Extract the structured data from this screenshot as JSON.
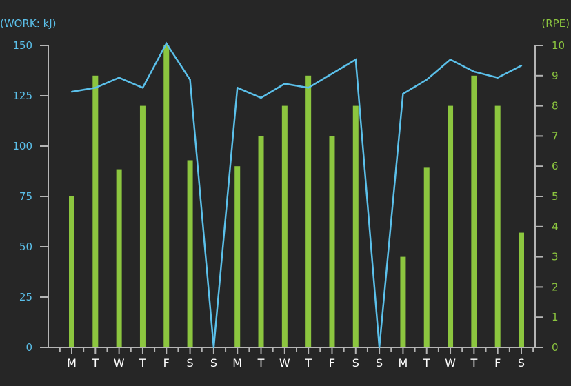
{
  "chart_data": {
    "type": "bar+line",
    "categories": [
      "M",
      "T",
      "W",
      "T",
      "F",
      "S",
      "S",
      "M",
      "T",
      "W",
      "T",
      "F",
      "S",
      "S",
      "M",
      "T",
      "W",
      "T",
      "F",
      "S"
    ],
    "left_axis": {
      "label": "(WORK: kJ)",
      "ticks": [
        0,
        25,
        50,
        75,
        100,
        125,
        150
      ],
      "range": [
        0,
        150
      ]
    },
    "right_axis": {
      "label": "(RPE)",
      "ticks": [
        0,
        1,
        2,
        3,
        4,
        5,
        6,
        7,
        8,
        9,
        10
      ],
      "range": [
        0,
        10
      ]
    },
    "series": [
      {
        "type": "bar",
        "axis": "right",
        "color": "#8cc63f",
        "values": [
          5,
          9,
          5.9,
          8,
          10,
          6.2,
          0,
          6,
          7,
          8,
          9,
          7,
          8,
          0,
          3,
          5.95,
          8,
          9,
          8,
          3.8
        ]
      },
      {
        "type": "line",
        "axis": "left",
        "color": "#5bc0ea",
        "values": [
          127,
          129,
          134,
          129,
          151,
          133,
          0,
          129,
          124,
          131,
          129,
          136,
          143,
          0,
          126,
          133,
          143,
          137,
          134,
          140
        ]
      }
    ],
    "grid": false,
    "legend": "none"
  }
}
